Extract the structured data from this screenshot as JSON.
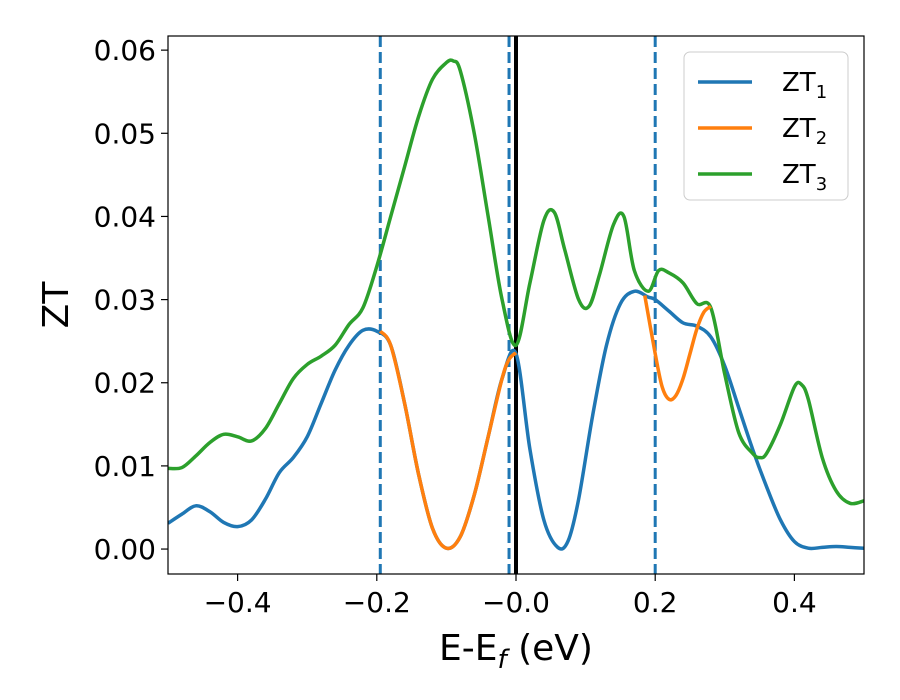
{
  "chart_data": {
    "type": "line",
    "xlabel": {
      "main": "E-E",
      "sub": "f",
      "suffix": " (eV)"
    },
    "ylabel": "ZT",
    "xlim": [
      -0.5,
      0.5
    ],
    "ylim": [
      -0.003,
      0.0617
    ],
    "x_ticks": [
      -0.4,
      -0.2,
      0.0,
      0.2,
      0.4
    ],
    "x_tick_labels": [
      "−0.4",
      "−0.2",
      "−0.0",
      "0.2",
      "0.4"
    ],
    "y_ticks": [
      0.0,
      0.01,
      0.02,
      0.03,
      0.04,
      0.05,
      0.06
    ],
    "y_tick_labels": [
      "0.00",
      "0.01",
      "0.02",
      "0.03",
      "0.04",
      "0.05",
      "0.06"
    ],
    "grid": false,
    "legend_position": "top-right",
    "vlines": [
      {
        "x": -0.195,
        "style": "dashed",
        "color": "#1f77b4"
      },
      {
        "x": -0.01,
        "style": "dashed",
        "color": "#1f77b4"
      },
      {
        "x": 0.2,
        "style": "dashed",
        "color": "#1f77b4"
      },
      {
        "x": 0.0,
        "style": "solid",
        "color": "#000000"
      }
    ],
    "series": [
      {
        "name": "ZT",
        "sub": "1",
        "color": "#1f77b4",
        "x": [
          -0.5,
          -0.48,
          -0.46,
          -0.44,
          -0.42,
          -0.4,
          -0.38,
          -0.36,
          -0.34,
          -0.32,
          -0.3,
          -0.28,
          -0.26,
          -0.24,
          -0.22,
          -0.2,
          -0.18,
          -0.16,
          -0.14,
          -0.12,
          -0.1,
          -0.08,
          -0.06,
          -0.04,
          -0.02,
          0.0,
          0.02,
          0.04,
          0.06,
          0.075,
          0.09,
          0.11,
          0.13,
          0.15,
          0.17,
          0.19,
          0.2,
          0.22,
          0.24,
          0.26,
          0.28,
          0.3,
          0.32,
          0.34,
          0.36,
          0.38,
          0.4,
          0.42,
          0.44,
          0.46,
          0.48,
          0.5
        ],
        "y": [
          0.0031,
          0.0042,
          0.0052,
          0.0045,
          0.0032,
          0.0027,
          0.0035,
          0.006,
          0.0092,
          0.011,
          0.0135,
          0.0175,
          0.0215,
          0.0245,
          0.0263,
          0.0262,
          0.0245,
          0.0175,
          0.009,
          0.0025,
          0.0001,
          0.0015,
          0.0065,
          0.0135,
          0.0205,
          0.0235,
          0.012,
          0.0035,
          0.0002,
          0.001,
          0.006,
          0.016,
          0.0245,
          0.0295,
          0.031,
          0.0303,
          0.03,
          0.0286,
          0.0272,
          0.0268,
          0.0255,
          0.022,
          0.017,
          0.012,
          0.0075,
          0.0035,
          0.0009,
          0.0001,
          0.0002,
          0.0003,
          0.0002,
          0.0001
        ]
      },
      {
        "name": "ZT",
        "sub": "2",
        "color": "#ff7f0e",
        "x": [
          -0.195,
          -0.18,
          -0.16,
          -0.14,
          -0.12,
          -0.1,
          -0.08,
          -0.06,
          -0.04,
          -0.02,
          -0.01,
          0.0,
          null,
          0.185,
          0.2,
          0.21,
          0.22,
          0.23,
          0.24,
          0.25,
          0.26,
          0.27,
          0.28
        ],
        "y": [
          0.0262,
          0.0245,
          0.0175,
          0.009,
          0.0025,
          0.0001,
          0.0015,
          0.0065,
          0.0135,
          0.0205,
          0.0228,
          0.0236,
          null,
          0.0305,
          0.0235,
          0.0195,
          0.018,
          0.0185,
          0.0205,
          0.0235,
          0.0265,
          0.0285,
          0.0292
        ]
      },
      {
        "name": "ZT",
        "sub": "3",
        "color": "#2ca02c",
        "x": [
          -0.5,
          -0.48,
          -0.46,
          -0.44,
          -0.42,
          -0.4,
          -0.38,
          -0.36,
          -0.34,
          -0.32,
          -0.3,
          -0.28,
          -0.26,
          -0.24,
          -0.22,
          -0.2,
          -0.18,
          -0.16,
          -0.14,
          -0.12,
          -0.1,
          -0.09,
          -0.08,
          -0.06,
          -0.04,
          -0.02,
          0.0,
          0.02,
          0.04,
          0.055,
          0.07,
          0.09,
          0.105,
          0.12,
          0.14,
          0.155,
          0.17,
          0.19,
          0.205,
          0.22,
          0.24,
          0.26,
          0.28,
          0.3,
          0.32,
          0.34,
          0.35,
          0.36,
          0.38,
          0.4,
          0.41,
          0.42,
          0.44,
          0.46,
          0.48,
          0.5
        ],
        "y": [
          0.0097,
          0.0098,
          0.0112,
          0.0128,
          0.0138,
          0.0135,
          0.013,
          0.0145,
          0.0175,
          0.0205,
          0.0222,
          0.0232,
          0.0245,
          0.027,
          0.029,
          0.034,
          0.04,
          0.046,
          0.052,
          0.0565,
          0.0585,
          0.0587,
          0.0575,
          0.05,
          0.04,
          0.03,
          0.0245,
          0.032,
          0.0395,
          0.0405,
          0.036,
          0.03,
          0.0292,
          0.033,
          0.039,
          0.04,
          0.0335,
          0.031,
          0.0335,
          0.0332,
          0.032,
          0.0295,
          0.029,
          0.021,
          0.014,
          0.0115,
          0.011,
          0.0115,
          0.015,
          0.0195,
          0.0198,
          0.018,
          0.011,
          0.007,
          0.0055,
          0.0058
        ]
      }
    ]
  }
}
